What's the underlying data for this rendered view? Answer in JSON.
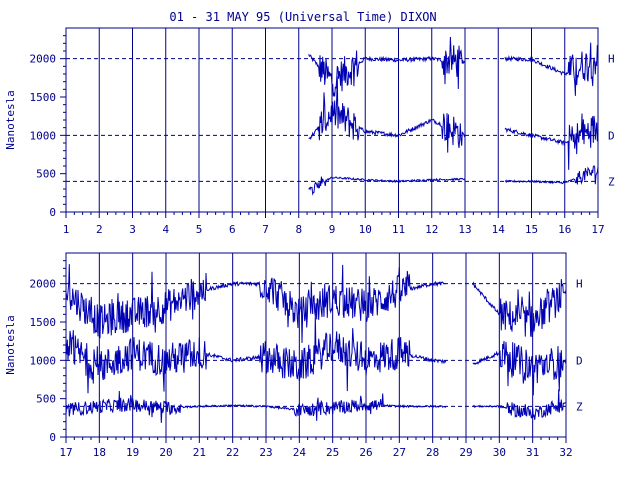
{
  "chart_data": {
    "type": "line",
    "title": "01 - 31 MAY 95 (Universal Time) DIXON",
    "ylabel": "Nanotesla",
    "ylim": [
      0,
      2400
    ],
    "yticks": [
      "0",
      "500",
      "1000",
      "1500",
      "2000"
    ],
    "reference_levels": [
      400,
      1000,
      2000
    ],
    "grid": "vertical lines at each day boundary; dashed horizontal lines at 400, 1000 and 2000 nT",
    "colors": {
      "axes": "#00008b",
      "trace": "#0000b4"
    },
    "panels": [
      {
        "xlim": [
          1,
          17
        ],
        "xticks": [
          "1",
          "2",
          "3",
          "4",
          "5",
          "6",
          "7",
          "8",
          "9",
          "10",
          "11",
          "12",
          "13",
          "14",
          "15",
          "16",
          "17"
        ],
        "segments": [
          [
            8.3,
            13.0
          ],
          [
            14.2,
            17.0
          ]
        ],
        "series": [
          {
            "name": "H",
            "baseline": 2000,
            "disturbed_days": [
              [
                8.6,
                9.8
              ],
              [
                12.3,
                12.9
              ],
              [
                16.1,
                17.0
              ]
            ],
            "x": [
              8.3,
              9.0,
              10.0,
              11.0,
              12.0,
              13.0,
              14.2,
              15.0,
              16.0,
              17.0
            ],
            "values": [
              2050,
              1700,
              2000,
              1980,
              2000,
              1950,
              2000,
              1990,
              1800,
              2000
            ]
          },
          {
            "name": "D",
            "baseline": 1000,
            "disturbed_days": [
              [
                8.6,
                9.8
              ],
              [
                12.3,
                12.9
              ],
              [
                16.1,
                17.0
              ]
            ],
            "x": [
              8.3,
              9.0,
              10.0,
              11.0,
              12.0,
              13.0,
              14.2,
              15.0,
              16.0,
              17.0
            ],
            "values": [
              950,
              1300,
              1050,
              1000,
              1200,
              1000,
              1080,
              1000,
              900,
              1100
            ]
          },
          {
            "name": "Z",
            "baseline": 400,
            "disturbed_days": [
              [
                8.4,
                8.8
              ],
              [
                16.3,
                17.0
              ]
            ],
            "x": [
              8.3,
              9.0,
              10.0,
              11.0,
              12.0,
              13.0,
              14.2,
              15.0,
              16.0,
              17.0
            ],
            "values": [
              300,
              450,
              420,
              400,
              420,
              430,
              400,
              400,
              380,
              550
            ]
          }
        ]
      },
      {
        "xlim": [
          17,
          32
        ],
        "xticks": [
          "17",
          "18",
          "19",
          "20",
          "21",
          "22",
          "23",
          "24",
          "25",
          "26",
          "27",
          "28",
          "29",
          "30",
          "31",
          "32"
        ],
        "segments": [
          [
            17.0,
            28.4
          ],
          [
            29.2,
            32.0
          ]
        ],
        "series": [
          {
            "name": "H",
            "baseline": 2000,
            "disturbed_days": [
              [
                17.0,
                21.2
              ],
              [
                22.8,
                27.3
              ],
              [
                30.0,
                31.9
              ]
            ],
            "x": [
              17.0,
              18.0,
              19.0,
              20.0,
              21.0,
              22.0,
              23.0,
              24.0,
              25.0,
              26.0,
              27.0,
              28.0,
              29.2,
              30.0,
              31.0,
              32.0
            ],
            "values": [
              1900,
              1500,
              1600,
              1700,
              1900,
              2000,
              2000,
              1600,
              1800,
              1700,
              1900,
              2000,
              2000,
              1600,
              1500,
              1900
            ]
          },
          {
            "name": "D",
            "baseline": 1000,
            "disturbed_days": [
              [
                17.0,
                21.2
              ],
              [
                22.8,
                27.3
              ],
              [
                30.0,
                31.9
              ]
            ],
            "x": [
              17.0,
              18.0,
              19.0,
              20.0,
              21.0,
              22.0,
              23.0,
              24.0,
              25.0,
              26.0,
              27.0,
              28.0,
              29.2,
              30.0,
              31.0,
              32.0
            ],
            "values": [
              1200,
              900,
              1100,
              1000,
              1100,
              1000,
              1050,
              900,
              1200,
              1000,
              1100,
              1000,
              950,
              1100,
              900,
              1000
            ]
          },
          {
            "name": "Z",
            "baseline": 400,
            "disturbed_days": [
              [
                17.0,
                20.5
              ],
              [
                23.8,
                26.5
              ],
              [
                30.2,
                31.9
              ]
            ],
            "x": [
              17.0,
              18.0,
              19.0,
              20.0,
              21.0,
              22.0,
              23.0,
              24.0,
              25.0,
              26.0,
              27.0,
              28.0,
              29.2,
              30.0,
              31.0,
              32.0
            ],
            "values": [
              350,
              400,
              420,
              380,
              400,
              410,
              400,
              350,
              380,
              420,
              400,
              400,
              400,
              400,
              300,
              450
            ]
          }
        ]
      }
    ]
  }
}
